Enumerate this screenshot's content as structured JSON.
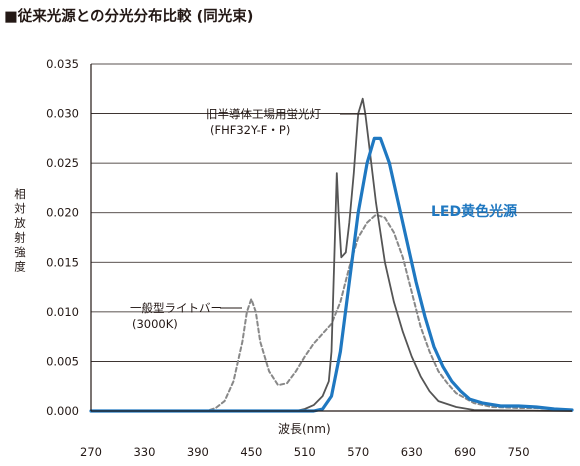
{
  "title": "■従来光源との分光分布比較 (同光束)",
  "chart_data": {
    "type": "line",
    "title": "■従来光源との分光分布比較 (同光束)",
    "xlabel": "波長(nm)",
    "ylabel": "相対放射強度",
    "xlim": [
      270,
      810
    ],
    "ylim": [
      0,
      0.035
    ],
    "x_ticks": [
      "270",
      "330",
      "390",
      "450",
      "510",
      "570",
      "630",
      "690",
      "750"
    ],
    "y_ticks": [
      "0.000",
      "0.005",
      "0.010",
      "0.015",
      "0.020",
      "0.025",
      "0.030",
      "0.035"
    ],
    "grid": "horizontal",
    "series": [
      {
        "name": "旧半導体工場用蛍光灯 (FHF32Y-F・P)",
        "label_lines": [
          "旧半導体工場用蛍光灯",
          "(FHF32Y-F・P)"
        ],
        "color": "#555555",
        "style": "solid",
        "points": [
          [
            270,
            0
          ],
          [
            500,
            0
          ],
          [
            510,
            0.0002
          ],
          [
            520,
            0.0006
          ],
          [
            530,
            0.0015
          ],
          [
            537,
            0.003
          ],
          [
            540,
            0.006
          ],
          [
            543,
            0.015
          ],
          [
            546,
            0.024
          ],
          [
            548,
            0.02
          ],
          [
            551,
            0.0155
          ],
          [
            556,
            0.016
          ],
          [
            560,
            0.019
          ],
          [
            565,
            0.024
          ],
          [
            570,
            0.03
          ],
          [
            575,
            0.0315
          ],
          [
            578,
            0.03
          ],
          [
            582,
            0.027
          ],
          [
            590,
            0.021
          ],
          [
            600,
            0.015
          ],
          [
            610,
            0.011
          ],
          [
            620,
            0.008
          ],
          [
            630,
            0.0055
          ],
          [
            640,
            0.0035
          ],
          [
            650,
            0.002
          ],
          [
            660,
            0.001
          ],
          [
            680,
            0.0004
          ],
          [
            700,
            0.0001
          ],
          [
            810,
            0
          ]
        ]
      },
      {
        "name": "一般型ライトバー (3000K)",
        "label_lines": [
          "一般型ライトバー",
          "(3000K)"
        ],
        "color": "#888888",
        "style": "dashed",
        "points": [
          [
            270,
            0
          ],
          [
            400,
            0
          ],
          [
            410,
            0.0003
          ],
          [
            420,
            0.001
          ],
          [
            430,
            0.003
          ],
          [
            440,
            0.007
          ],
          [
            445,
            0.01
          ],
          [
            450,
            0.0113
          ],
          [
            455,
            0.01
          ],
          [
            460,
            0.007
          ],
          [
            470,
            0.004
          ],
          [
            480,
            0.0026
          ],
          [
            490,
            0.0028
          ],
          [
            500,
            0.004
          ],
          [
            510,
            0.0055
          ],
          [
            520,
            0.0068
          ],
          [
            530,
            0.0078
          ],
          [
            540,
            0.0088
          ],
          [
            550,
            0.011
          ],
          [
            560,
            0.0145
          ],
          [
            570,
            0.0175
          ],
          [
            580,
            0.019
          ],
          [
            590,
            0.0198
          ],
          [
            600,
            0.0195
          ],
          [
            610,
            0.018
          ],
          [
            620,
            0.0155
          ],
          [
            630,
            0.012
          ],
          [
            640,
            0.0085
          ],
          [
            650,
            0.006
          ],
          [
            660,
            0.004
          ],
          [
            670,
            0.0028
          ],
          [
            680,
            0.0018
          ],
          [
            700,
            0.0008
          ],
          [
            720,
            0.0004
          ],
          [
            750,
            0.0003
          ],
          [
            770,
            0.0003
          ],
          [
            790,
            0.0002
          ],
          [
            810,
            0.0001
          ]
        ]
      },
      {
        "name": "LED黄色光源",
        "label_lines": [
          "LED黄色光源"
        ],
        "color": "#1f78c1",
        "style": "solid",
        "points": [
          [
            270,
            0
          ],
          [
            520,
            0
          ],
          [
            530,
            0.0002
          ],
          [
            540,
            0.0015
          ],
          [
            550,
            0.006
          ],
          [
            560,
            0.013
          ],
          [
            570,
            0.02
          ],
          [
            580,
            0.025
          ],
          [
            588,
            0.0275
          ],
          [
            595,
            0.0275
          ],
          [
            605,
            0.025
          ],
          [
            615,
            0.021
          ],
          [
            625,
            0.017
          ],
          [
            635,
            0.013
          ],
          [
            645,
            0.0095
          ],
          [
            655,
            0.0065
          ],
          [
            665,
            0.0045
          ],
          [
            675,
            0.003
          ],
          [
            685,
            0.002
          ],
          [
            695,
            0.0012
          ],
          [
            710,
            0.0008
          ],
          [
            730,
            0.0005
          ],
          [
            750,
            0.0005
          ],
          [
            770,
            0.0004
          ],
          [
            790,
            0.0002
          ],
          [
            810,
            0.0001
          ]
        ]
      }
    ]
  }
}
